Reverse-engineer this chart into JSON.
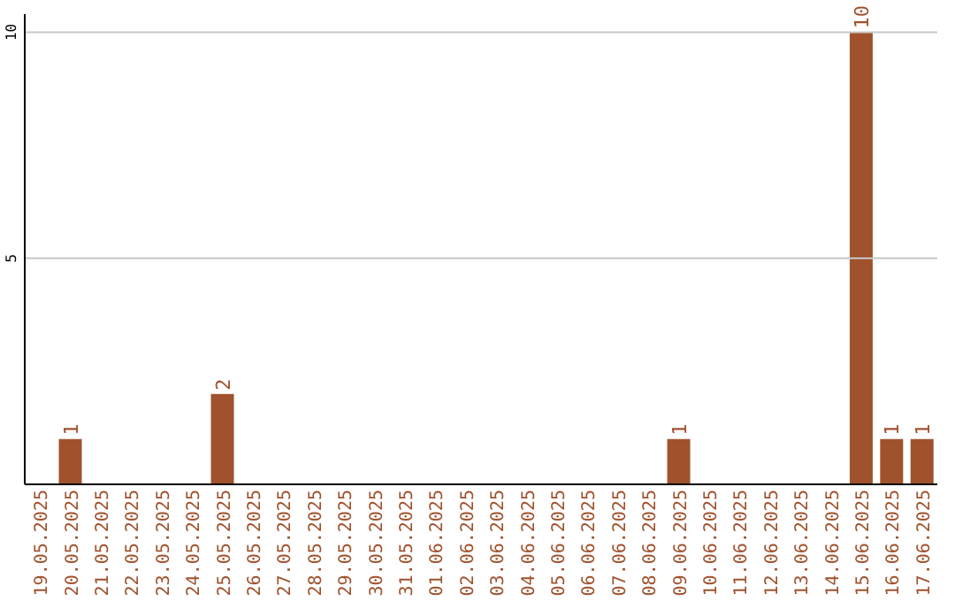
{
  "chart_data": {
    "type": "bar",
    "categories": [
      "19.05.2025",
      "20.05.2025",
      "21.05.2025",
      "22.05.2025",
      "23.05.2025",
      "24.05.2025",
      "25.05.2025",
      "26.05.2025",
      "27.05.2025",
      "28.05.2025",
      "29.05.2025",
      "30.05.2025",
      "31.05.2025",
      "01.06.2025",
      "02.06.2025",
      "03.06.2025",
      "04.06.2025",
      "05.06.2025",
      "06.06.2025",
      "07.06.2025",
      "08.06.2025",
      "09.06.2025",
      "10.06.2025",
      "11.06.2025",
      "12.06.2025",
      "13.06.2025",
      "14.06.2025",
      "15.06.2025",
      "16.06.2025",
      "17.06.2025"
    ],
    "values": [
      null,
      1,
      null,
      null,
      null,
      null,
      2,
      null,
      null,
      null,
      null,
      null,
      null,
      null,
      null,
      null,
      null,
      null,
      null,
      null,
      null,
      1,
      null,
      null,
      null,
      null,
      null,
      10,
      1,
      1
    ],
    "color": "#a0522d",
    "ylim": [
      0,
      10.4
    ],
    "yticks": [
      5,
      10
    ],
    "grid": "y",
    "data_labels": true
  }
}
